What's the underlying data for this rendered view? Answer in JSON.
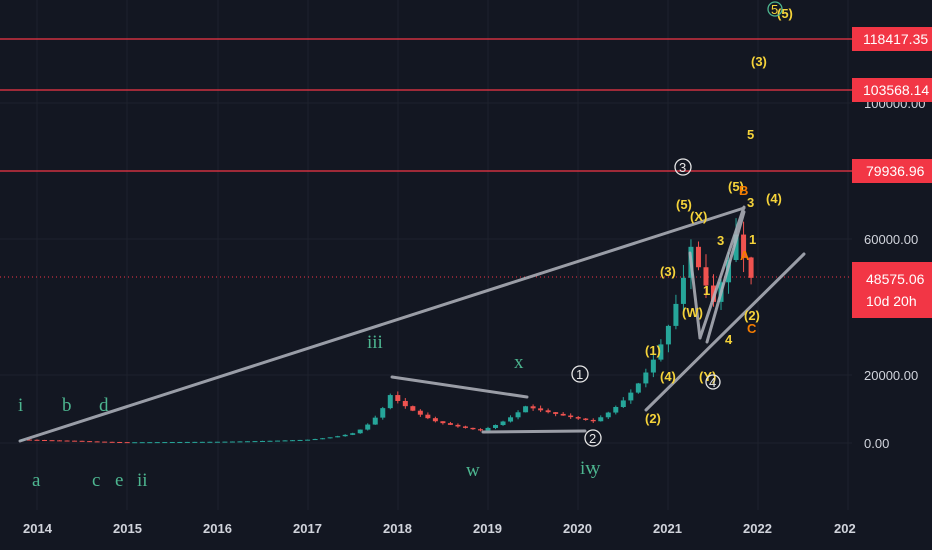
{
  "chart_data": {
    "type": "candlestick",
    "symbol_quote": "USD",
    "x_ticks": [
      "2014",
      "2015",
      "2016",
      "2017",
      "2018",
      "2019",
      "2020",
      "2021",
      "2022",
      "202"
    ],
    "y_ticks": [
      "60000.00",
      "20000.00",
      "0.00"
    ],
    "y_ticks_partial": [
      "100000.00"
    ],
    "price_scale": "log",
    "horizontal_levels": [
      {
        "label": "118417.35",
        "value": 118417.35,
        "color": "#f23645"
      },
      {
        "label": "103568.14",
        "value": 103568.14,
        "color": "#f23645"
      },
      {
        "label": "79936.96",
        "value": 79936.96,
        "color": "#f23645"
      }
    ],
    "current_price": {
      "label": "48575.06",
      "countdown": "10d 20h",
      "value": 48575.06,
      "color": "#f23645"
    },
    "monthly_close_approx": [
      {
        "date": "2013-11",
        "close": 1000
      },
      {
        "date": "2014-06",
        "close": 640
      },
      {
        "date": "2015-01",
        "close": 220
      },
      {
        "date": "2016-01",
        "close": 370
      },
      {
        "date": "2017-01",
        "close": 970
      },
      {
        "date": "2017-07",
        "close": 2870
      },
      {
        "date": "2017-12",
        "close": 14100
      },
      {
        "date": "2018-06",
        "close": 6400
      },
      {
        "date": "2018-12",
        "close": 3700
      },
      {
        "date": "2019-06",
        "close": 10800
      },
      {
        "date": "2020-03",
        "close": 6400
      },
      {
        "date": "2020-12",
        "close": 29000
      },
      {
        "date": "2021-04",
        "close": 57700
      },
      {
        "date": "2021-07",
        "close": 41500
      },
      {
        "date": "2021-10",
        "close": 61300
      },
      {
        "date": "2021-12",
        "close": 48575
      }
    ],
    "wave_labels_yellow": [
      "(5)",
      "(X)",
      "(3)",
      "(W)",
      "1",
      "(4)",
      "(1)",
      "(2)",
      "(Y)",
      "3",
      "4",
      "(5)",
      "3",
      "1",
      "(2)",
      "C",
      "(4)",
      "5",
      "(3)",
      "5",
      "A",
      "B"
    ],
    "wave_labels_green": [
      "i",
      "b",
      "d",
      "a",
      "c",
      "e",
      "ii",
      "iii",
      "x",
      "w",
      "iv",
      "y"
    ],
    "wave_labels_circled": [
      "1",
      "2",
      "3",
      "4",
      "5"
    ]
  }
}
